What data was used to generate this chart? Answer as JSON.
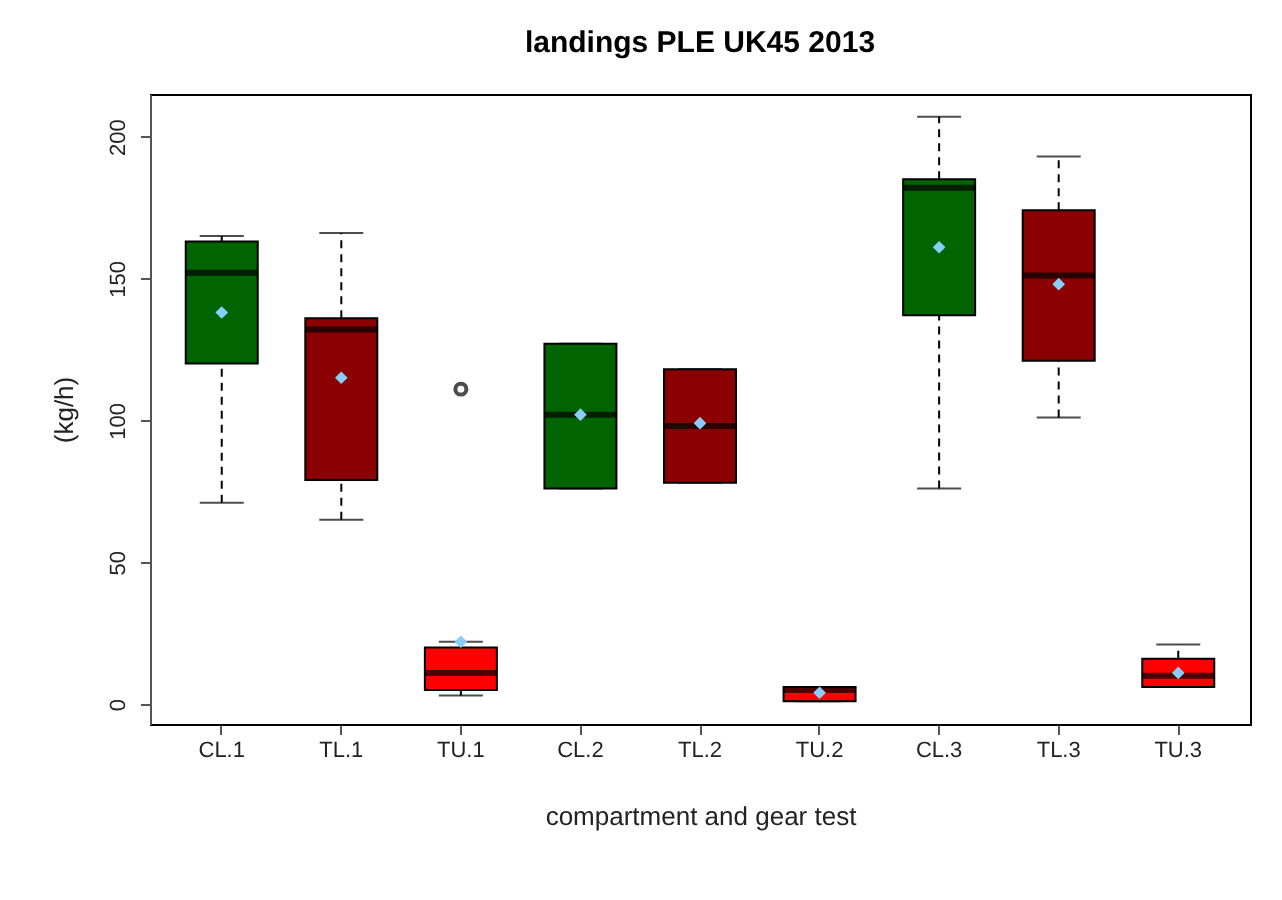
{
  "chart_data": {
    "type": "box",
    "title": "landings PLE UK45 2013",
    "xlabel": "compartment and gear test",
    "ylabel": "(kg/h)",
    "categories": [
      "CL.1",
      "TL.1",
      "TU.1",
      "CL.2",
      "TL.2",
      "TU.2",
      "CL.3",
      "TL.3",
      "TU.3"
    ],
    "colors": [
      "#006400",
      "#8b0000",
      "#ff0000",
      "#006400",
      "#8b0000",
      "#ff0000",
      "#006400",
      "#8b0000",
      "#ff0000"
    ],
    "boxes": [
      {
        "low": 71,
        "q1": 120,
        "median": 152,
        "q3": 163,
        "high": 165,
        "mean": 138
      },
      {
        "low": 65,
        "q1": 79,
        "median": 132,
        "q3": 136,
        "high": 166,
        "mean": 115
      },
      {
        "low": 3,
        "q1": 5,
        "median": 11,
        "q3": 20,
        "high": 22,
        "mean": 22,
        "outliers": [
          111
        ]
      },
      {
        "low": 76,
        "q1": 76,
        "median": 102,
        "q3": 127,
        "high": 127,
        "mean": 102
      },
      {
        "low": 78,
        "q1": 78,
        "median": 98,
        "q3": 118,
        "high": 118,
        "mean": 99
      },
      {
        "low": 1,
        "q1": 1,
        "median": 5,
        "q3": 6,
        "high": 6,
        "mean": 4
      },
      {
        "low": 76,
        "q1": 137,
        "median": 182,
        "q3": 185,
        "high": 207,
        "mean": 161
      },
      {
        "low": 101,
        "q1": 121,
        "median": 151,
        "q3": 174,
        "high": 193,
        "mean": 148
      },
      {
        "low": 6,
        "q1": 6,
        "median": 10,
        "q3": 16,
        "high": 21,
        "mean": 11
      }
    ],
    "ylim": [
      -7,
      215
    ],
    "yticks": [
      0,
      50,
      100,
      150,
      200
    ],
    "grid": false
  }
}
